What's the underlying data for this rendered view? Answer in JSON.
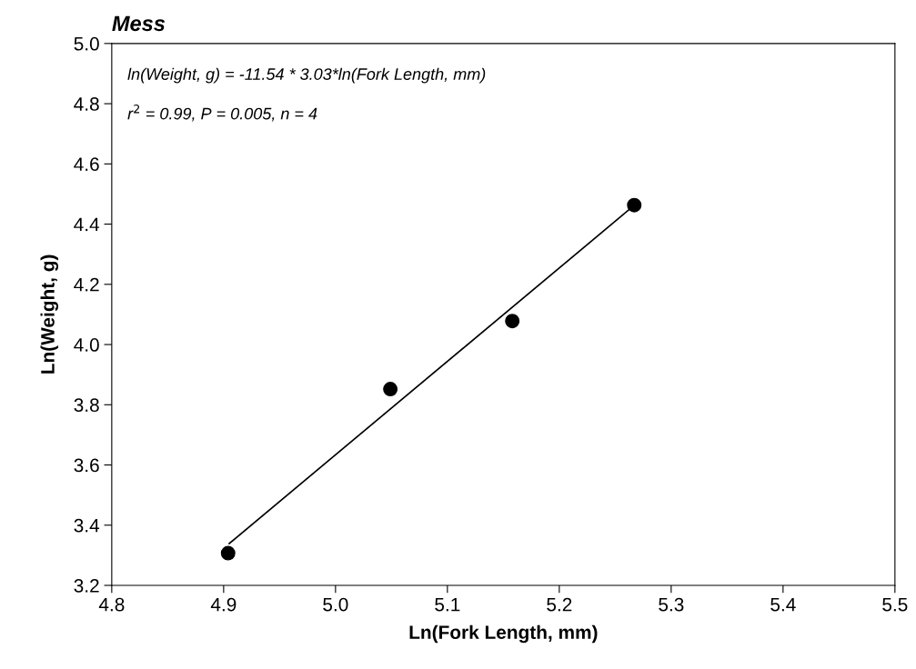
{
  "chart_data": {
    "type": "scatter",
    "title": "Mess",
    "xlabel": "Ln(Fork Length, mm)",
    "ylabel": "Ln(Weight, g)",
    "series": [
      {
        "color": "#000000",
        "x": [
          4.904,
          5.049,
          5.158,
          5.267
        ],
        "values": [
          3.307,
          3.852,
          4.078,
          4.463
        ]
      },
      {
        "type": "line",
        "marker": "none",
        "color": "#000000",
        "x": [
          4.905,
          5.264
        ],
        "values": [
          3.339,
          4.453
        ]
      }
    ],
    "annotations": [
      "ln(Weight, g) = -11.54 * 3.03*ln(Fork Length, mm)",
      "r$^{2}$ = 0.99, P = 0.005, n = 4"
    ],
    "xlim": [
      4.8,
      5.5
    ],
    "xticks": [
      4.8,
      4.9,
      {
        "value": 5,
        "label": "5.0"
      },
      5.1,
      5.2,
      5.3,
      5.4,
      5.5
    ],
    "ylim": [
      3.2,
      5.0
    ],
    "yticks": [
      3.2,
      3.4,
      3.6,
      3.8,
      {
        "value": 4,
        "label": "4.0"
      },
      4.2,
      4.4,
      4.6,
      4.8,
      {
        "value": 5,
        "label": "5.0"
      }
    ],
    "marker": "circle",
    "grid": false,
    "legend": false
  }
}
